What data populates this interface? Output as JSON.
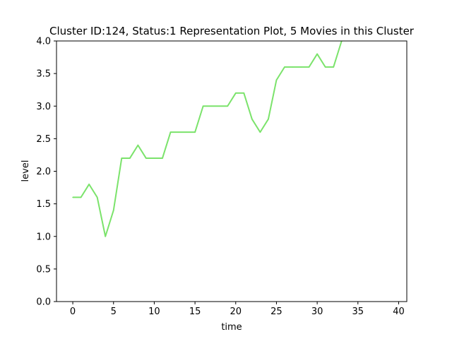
{
  "chart_data": {
    "type": "line",
    "title": "Cluster ID:124, Status:1 Representation Plot, 5 Movies in this Cluster",
    "xlabel": "time",
    "ylabel": "level",
    "xlim": [
      -2,
      41
    ],
    "ylim": [
      0.0,
      4.0
    ],
    "xticks": [
      0,
      5,
      10,
      15,
      20,
      25,
      30,
      35,
      40
    ],
    "xtick_labels": [
      "0",
      "5",
      "10",
      "15",
      "20",
      "25",
      "30",
      "35",
      "40"
    ],
    "yticks": [
      0.0,
      0.5,
      1.0,
      1.5,
      2.0,
      2.5,
      3.0,
      3.5,
      4.0
    ],
    "ytick_labels": [
      "0.0",
      "0.5",
      "1.0",
      "1.5",
      "2.0",
      "2.5",
      "3.0",
      "3.5",
      "4.0"
    ],
    "grid": false,
    "series": [
      {
        "color": "#7be36b",
        "x": [
          0,
          1,
          2,
          3,
          4,
          5,
          6,
          7,
          8,
          9,
          10,
          11,
          12,
          13,
          14,
          15,
          16,
          17,
          18,
          19,
          20,
          21,
          22,
          23,
          24,
          25,
          26,
          27,
          28,
          29,
          30,
          31,
          32,
          33
        ],
        "y": [
          1.6,
          1.6,
          1.8,
          1.6,
          1.0,
          1.4,
          2.2,
          2.2,
          2.4,
          2.2,
          2.2,
          2.2,
          2.6,
          2.6,
          2.6,
          2.6,
          3.0,
          3.0,
          3.0,
          3.0,
          3.2,
          3.2,
          2.8,
          2.6,
          2.8,
          3.4,
          3.6,
          3.6,
          3.6,
          3.6,
          3.8,
          3.6,
          3.6,
          4.0
        ]
      }
    ]
  }
}
